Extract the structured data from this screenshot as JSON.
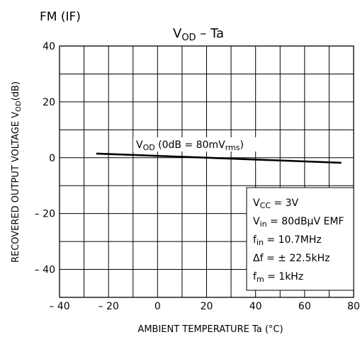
{
  "header": {
    "section": "FM (IF)"
  },
  "chart_data": {
    "type": "line",
    "title_main": "V",
    "title_sub": "OD",
    "title_rest": "  –  Ta",
    "xlabel": "AMBIENT TEMPERATURE    Ta    (°C)",
    "ylabel_text": "RECOVERED OUTPUT VOLTAGE    V",
    "ylabel_sub": "OD",
    "ylabel_unit": "(dB)",
    "xlim": [
      -40,
      80
    ],
    "ylim": [
      -50,
      40
    ],
    "x_ticks": [
      -40,
      -20,
      0,
      20,
      40,
      60,
      80
    ],
    "x_tick_labels": [
      "– 40",
      "– 20",
      "0",
      "20",
      "40",
      "60",
      "80"
    ],
    "y_ticks": [
      40,
      20,
      0,
      -20,
      -40
    ],
    "y_tick_labels": [
      "40",
      "20",
      "0",
      "– 20",
      "– 40"
    ],
    "x_grid": [
      -40,
      -30,
      -20,
      -10,
      0,
      10,
      20,
      30,
      40,
      50,
      60,
      70,
      80
    ],
    "y_grid": [
      40,
      30,
      20,
      10,
      0,
      -10,
      -20,
      -30,
      -40,
      -50
    ],
    "series": [
      {
        "x": [
          -25,
          75
        ],
        "y": [
          1.5,
          -1.8
        ]
      }
    ],
    "curve_label": {
      "main": "V",
      "sub": "OD",
      "rest": " (0dB = 80mV",
      "sub2": "rms",
      "close": ")"
    },
    "conditions": [
      {
        "main": "V",
        "sub": "CC",
        "rest": " = 3V"
      },
      {
        "main": "V",
        "sub": "in",
        "rest": " = 80dBμV  EMF"
      },
      {
        "main": "f",
        "sub": "in",
        "rest": " = 10.7MHz"
      },
      {
        "main": "Δf",
        "sub": "",
        "rest": " = ± 22.5kHz"
      },
      {
        "main": "f",
        "sub": "m",
        "rest": " = 1kHz"
      }
    ]
  }
}
